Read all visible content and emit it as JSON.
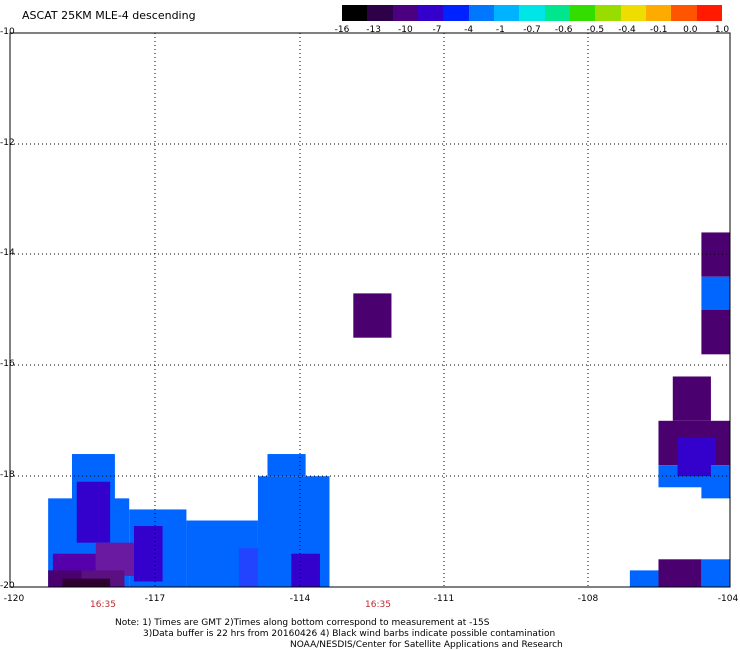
{
  "title": "ASCAT 25KM MLE-4 descending",
  "colorbar": {
    "labels": [
      "-16",
      "-13",
      "-10",
      "-7",
      "-4",
      "-1",
      "-0.7",
      "-0.6",
      "-0.5",
      "-0.4",
      "-0.1",
      "0.0",
      "1.0"
    ],
    "colors": [
      "#000000",
      "#2d0047",
      "#4b0082",
      "#3300cc",
      "#0022ff",
      "#0077ff",
      "#00b3ff",
      "#00e6e6",
      "#00e68c",
      "#33dd00",
      "#99dd00",
      "#eedd00",
      "#ffaa00",
      "#ff5500",
      "#ff1a00"
    ]
  },
  "axes": {
    "y_labels": [
      "-10",
      "-12",
      "-14",
      "-16",
      "-18",
      "-20"
    ],
    "x_labels": [
      "-120",
      "-117",
      "-114",
      "-111",
      "-108",
      "-104"
    ],
    "lat_range": [
      -20,
      -10
    ],
    "lon_range": [
      -120,
      -104.9
    ]
  },
  "times": [
    "16:35",
    "16:35"
  ],
  "notes": [
    "Note: 1) Times are GMT 2)Times along bottom correspond to measurement at -15S",
    "3)Data buffer is 22 hrs from 20160426 4) Black wind barbs indicate possible contamination",
    "NOAA/NESDIS/Center for Satellite Applications and Research"
  ],
  "cells": [
    {
      "lon": [
        -112.8,
        -112.0
      ],
      "lat": [
        -15.5,
        -14.7
      ],
      "color": "#4b0070"
    },
    {
      "lon": [
        -105.5,
        -104.9
      ],
      "lat": [
        -14.4,
        -13.6
      ],
      "color": "#4b0070"
    },
    {
      "lon": [
        -105.5,
        -104.9
      ],
      "lat": [
        -15.0,
        -14.4
      ],
      "color": "#0066ff"
    },
    {
      "lon": [
        -105.0,
        -104.9
      ],
      "lat": [
        -15.3,
        -14.9
      ],
      "color": "#0066ff"
    },
    {
      "lon": [
        -105.5,
        -104.9
      ],
      "lat": [
        -15.8,
        -15.0
      ],
      "color": "#4b0070"
    },
    {
      "lon": [
        -106.1,
        -105.3
      ],
      "lat": [
        -17.0,
        -16.2
      ],
      "color": "#4b0070"
    },
    {
      "lon": [
        -106.4,
        -104.9
      ],
      "lat": [
        -17.8,
        -17.0
      ],
      "color": "#4b0070"
    },
    {
      "lon": [
        -106.0,
        -105.2
      ],
      "lat": [
        -17.8,
        -17.3
      ],
      "color": "#3300cc"
    },
    {
      "lon": [
        -106.4,
        -104.9
      ],
      "lat": [
        -18.2,
        -17.8
      ],
      "color": "#0066ff"
    },
    {
      "lon": [
        -106.0,
        -105.3
      ],
      "lat": [
        -18.0,
        -17.6
      ],
      "color": "#3300cc"
    },
    {
      "lon": [
        -105.5,
        -104.9
      ],
      "lat": [
        -18.4,
        -18.0
      ],
      "color": "#0066ff"
    },
    {
      "lon": [
        -107.0,
        -106.4
      ],
      "lat": [
        -20.0,
        -19.7
      ],
      "color": "#0066ff"
    },
    {
      "lon": [
        -106.4,
        -105.5
      ],
      "lat": [
        -20.0,
        -19.5
      ],
      "color": "#4b0070"
    },
    {
      "lon": [
        -105.5,
        -104.9
      ],
      "lat": [
        -20.0,
        -19.5
      ],
      "color": "#0066ff"
    },
    {
      "lon": [
        -118.7,
        -117.8
      ],
      "lat": [
        -18.9,
        -17.6
      ],
      "color": "#0066ff"
    },
    {
      "lon": [
        -119.2,
        -117.5
      ],
      "lat": [
        -20.0,
        -18.4
      ],
      "color": "#0066ff"
    },
    {
      "lon": [
        -118.6,
        -117.9
      ],
      "lat": [
        -19.2,
        -18.1
      ],
      "color": "#3300cc"
    },
    {
      "lon": [
        -117.5,
        -116.3
      ],
      "lat": [
        -20.0,
        -18.6
      ],
      "color": "#0066ff"
    },
    {
      "lon": [
        -116.3,
        -114.8
      ],
      "lat": [
        -20.0,
        -18.8
      ],
      "color": "#0066ff"
    },
    {
      "lon": [
        -115.2,
        -114.3
      ],
      "lat": [
        -20.0,
        -19.3
      ],
      "color": "#2244ff"
    },
    {
      "lon": [
        -114.8,
        -113.3
      ],
      "lat": [
        -20.0,
        -18.0
      ],
      "color": "#0066ff"
    },
    {
      "lon": [
        -114.6,
        -113.8
      ],
      "lat": [
        -18.0,
        -17.6
      ],
      "color": "#0066ff"
    },
    {
      "lon": [
        -114.1,
        -113.5
      ],
      "lat": [
        -20.0,
        -19.4
      ],
      "color": "#3300cc"
    },
    {
      "lon": [
        -119.1,
        -118.2
      ],
      "lat": [
        -19.9,
        -19.4
      ],
      "color": "#5500aa"
    },
    {
      "lon": [
        -118.2,
        -117.3
      ],
      "lat": [
        -19.8,
        -19.2
      ],
      "color": "#6a1aa0"
    },
    {
      "lon": [
        -117.4,
        -116.8
      ],
      "lat": [
        -19.9,
        -18.9
      ],
      "color": "#3300cc"
    },
    {
      "lon": [
        -119.2,
        -118.5
      ],
      "lat": [
        -20.0,
        -19.7
      ],
      "color": "#4b0070"
    },
    {
      "lon": [
        -118.5,
        -117.6
      ],
      "lat": [
        -20.0,
        -19.7
      ],
      "color": "#5a1080"
    },
    {
      "lon": [
        -118.9,
        -117.9
      ],
      "lat": [
        -20.0,
        -19.85
      ],
      "color": "#2d0030"
    }
  ]
}
